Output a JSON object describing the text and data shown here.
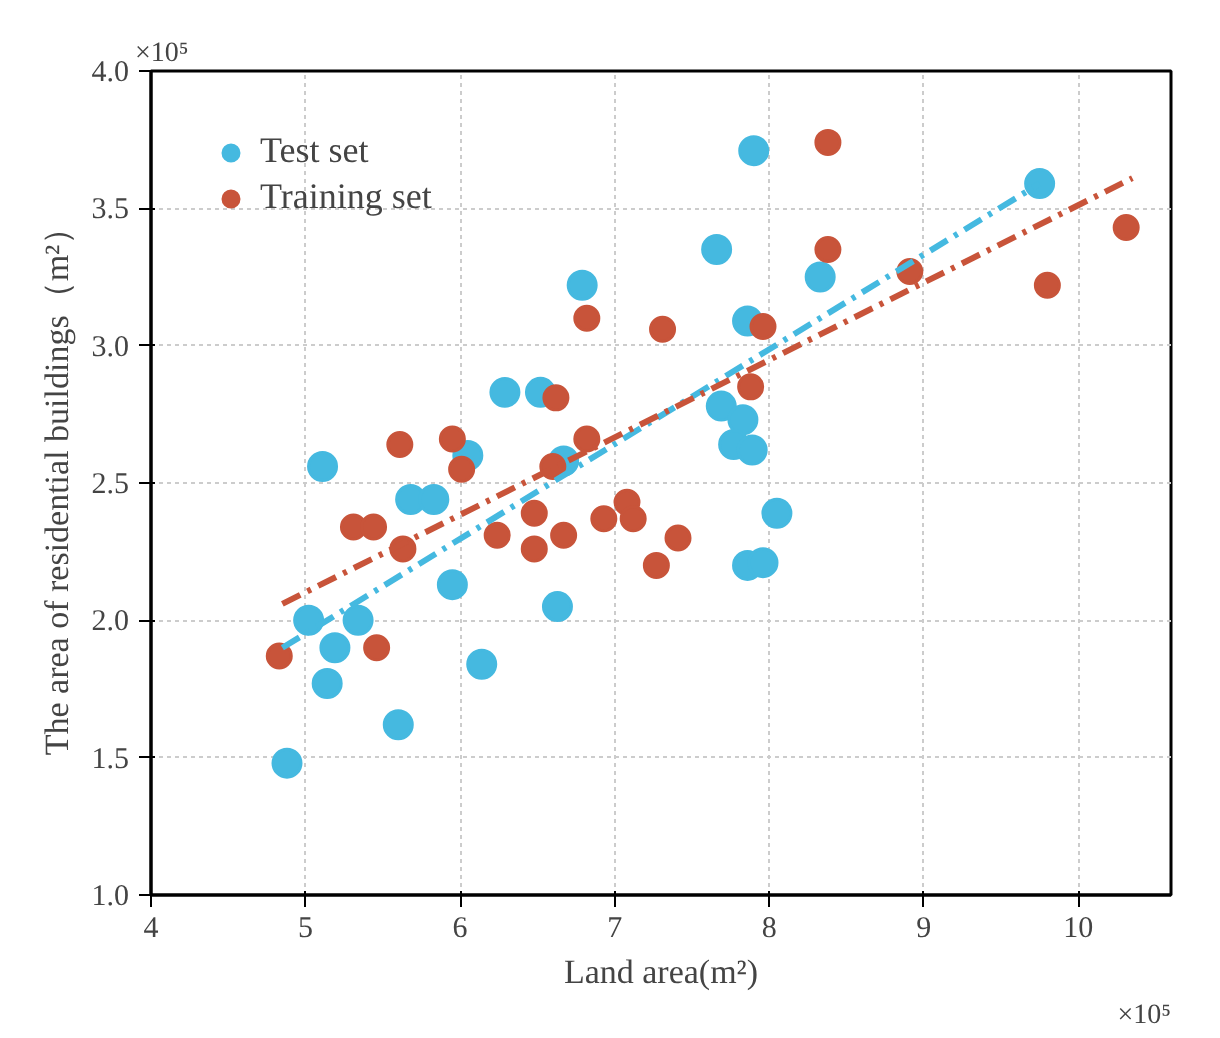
{
  "chart_data": {
    "type": "scatter",
    "xlabel": "Land area(m²)",
    "ylabel": "The area of residential buildings（m²）",
    "annotations": [
      "×10⁵",
      "×10⁵"
    ],
    "xlim": [
      4,
      10.6
    ],
    "ylim": [
      1.0,
      4.0
    ],
    "xticks": [
      4,
      5,
      6,
      7,
      8,
      9,
      10
    ],
    "yticks": [
      {
        "value": 1,
        "label": "1.0"
      },
      {
        "value": 1.5,
        "label": "1.5"
      },
      {
        "value": 2,
        "label": "2.0"
      },
      {
        "value": 2.5,
        "label": "2.5"
      },
      {
        "value": 3,
        "label": "3.0"
      },
      {
        "value": 3.5,
        "label": "3.5"
      },
      {
        "value": 4,
        "label": "4.0"
      }
    ],
    "grid": true,
    "legend": "top left",
    "marker": "circle",
    "series": [
      {
        "name": "Test set",
        "color": "#45b9e0",
        "x": [
          4.88,
          5.02,
          5.14,
          5.19,
          5.34,
          5.11,
          5.6,
          5.68,
          5.83,
          5.95,
          6.05,
          6.14,
          6.29,
          6.52,
          6.79,
          6.67,
          6.63,
          7.9,
          7.66,
          8.33,
          9.75,
          7.86,
          7.69,
          7.83,
          7.77,
          7.89,
          8.05,
          7.86,
          7.96
        ],
        "values": [
          1.48,
          2.0,
          1.77,
          1.9,
          2.0,
          2.56,
          1.62,
          2.44,
          2.44,
          2.13,
          2.6,
          1.84,
          2.83,
          2.83,
          3.22,
          2.58,
          2.05,
          3.71,
          3.35,
          3.25,
          3.59,
          3.09,
          2.78,
          2.73,
          2.64,
          2.62,
          2.39,
          2.2,
          2.21
        ]
      },
      {
        "name": "Training set",
        "color": "#c8543a",
        "x": [
          4.83,
          5.46,
          5.31,
          5.44,
          5.63,
          5.61,
          5.95,
          6.01,
          6.24,
          6.48,
          6.48,
          6.6,
          6.67,
          6.82,
          6.93,
          7.08,
          7.12,
          7.27,
          7.41,
          6.82,
          7.31,
          6.62,
          8.38,
          8.38,
          7.96,
          7.88,
          8.91,
          10.31,
          9.8
        ],
        "values": [
          1.87,
          1.9,
          2.34,
          2.34,
          2.26,
          2.64,
          2.66,
          2.55,
          2.31,
          2.39,
          2.26,
          2.56,
          2.31,
          2.66,
          2.37,
          2.43,
          2.37,
          2.2,
          2.3,
          3.1,
          3.06,
          2.81,
          3.74,
          3.35,
          3.07,
          2.85,
          3.27,
          3.43,
          3.22
        ]
      },
      {
        "type": "line",
        "color": "#45b9e0",
        "line_style": "dashed",
        "marker": "none",
        "x": [
          4.85,
          9.75
        ],
        "values": [
          1.9,
          3.59
        ]
      },
      {
        "type": "line",
        "color": "#c8543a",
        "line_style": "dashed",
        "marker": "none",
        "x": [
          4.85,
          10.35
        ],
        "values": [
          2.06,
          3.61
        ]
      }
    ]
  }
}
